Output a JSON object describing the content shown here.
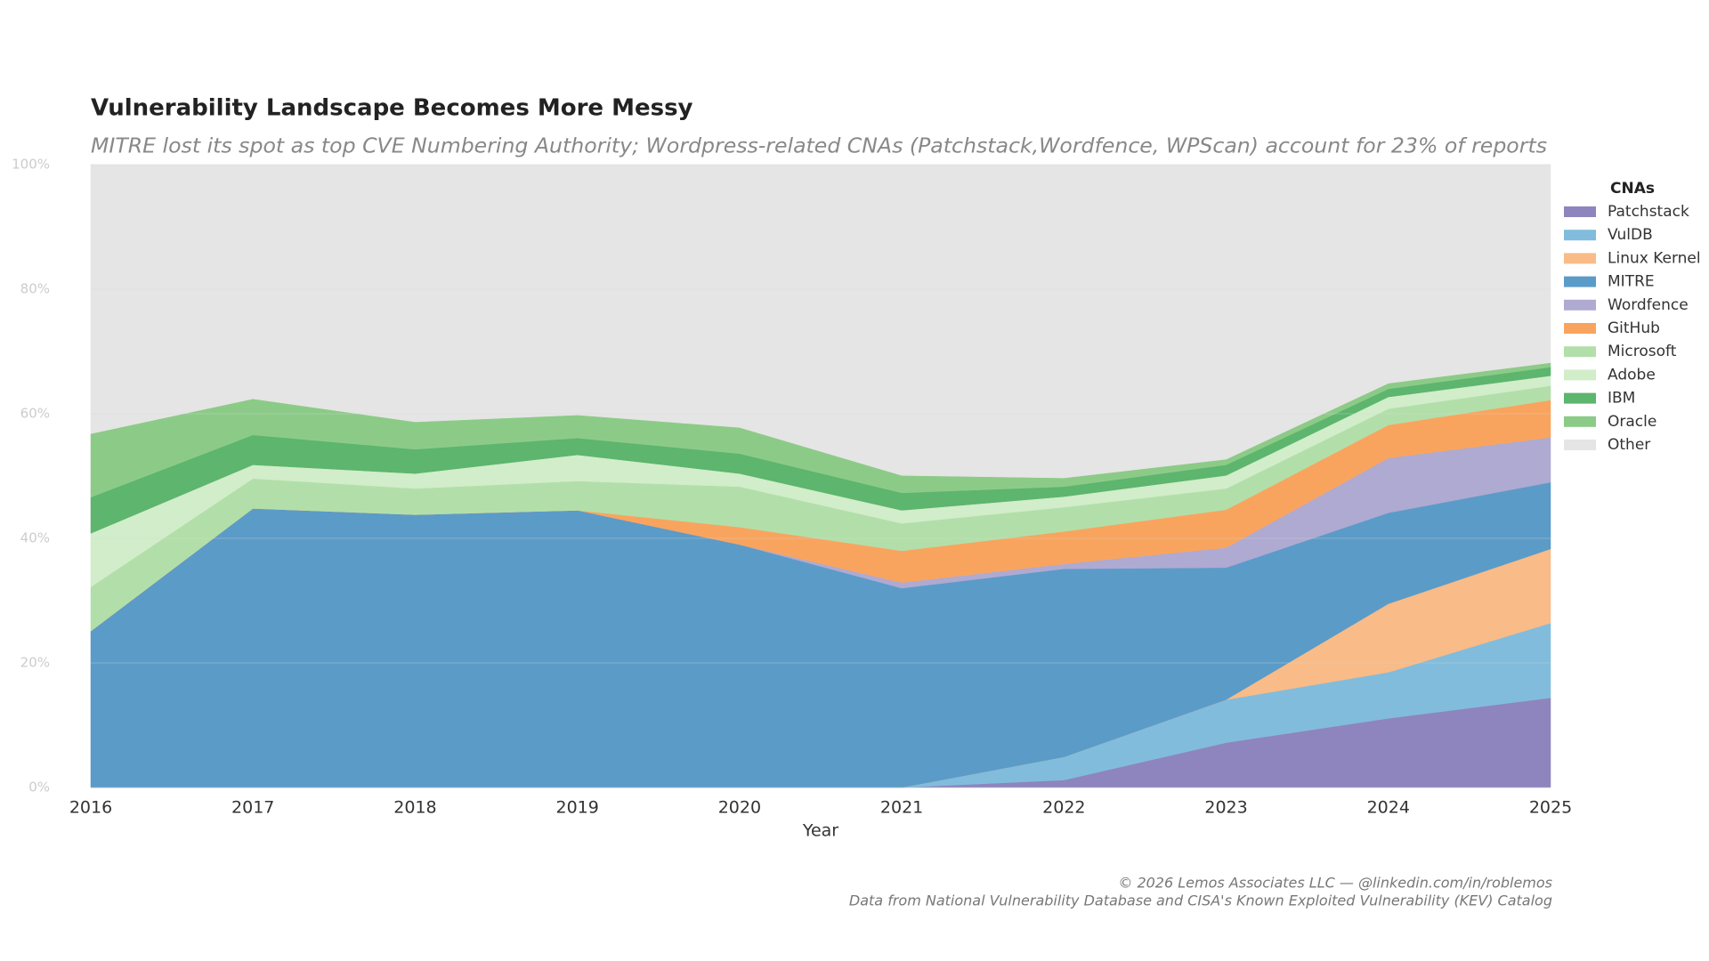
{
  "chart_data": {
    "type": "stacked_area",
    "title": "Vulnerability Landscape Becomes More Messy",
    "subtitle": "MITRE lost its spot as top CVE Numbering Authority; Wordpress-related CNAs (Patchstack,Wordfence, WPScan) account for 23% of reports",
    "x_label": "Year",
    "categories": [
      "2016",
      "2017",
      "2018",
      "2019",
      "2020",
      "2021",
      "2022",
      "2023",
      "2024",
      "2025"
    ],
    "ylim": [
      0,
      100
    ],
    "yticks": [
      {
        "value": 0,
        "label": "0%"
      },
      {
        "value": 20,
        "label": "20%"
      },
      {
        "value": 40,
        "label": "40%"
      },
      {
        "value": 60,
        "label": "60%"
      },
      {
        "value": 80,
        "label": "80%"
      },
      {
        "value": 100,
        "label": "100%"
      }
    ],
    "grid": true,
    "legend_title": "CNAs",
    "legend_position": "right",
    "series": [
      {
        "name": "Patchstack",
        "color": "#8e85be",
        "values": [
          0,
          0,
          0,
          0,
          0,
          0,
          1.2,
          7.2,
          11.1,
          14.4
        ]
      },
      {
        "name": "VulDB",
        "color": "#82bcdc",
        "values": [
          0,
          0,
          0,
          0,
          0,
          0,
          3.7,
          6.9,
          7.4,
          12.0
        ]
      },
      {
        "name": "Linux Kernel",
        "color": "#f9bb87",
        "values": [
          0,
          0,
          0,
          0,
          0,
          0,
          0,
          0,
          11.0,
          11.9
        ]
      },
      {
        "name": "MITRE",
        "color": "#5b9bc8",
        "values": [
          25.1,
          44.8,
          43.8,
          44.5,
          39.0,
          32.0,
          30.2,
          21.2,
          14.6,
          10.7
        ]
      },
      {
        "name": "Wordfence",
        "color": "#aeaad2",
        "values": [
          0,
          0,
          0,
          0,
          0,
          0.9,
          0.8,
          3.2,
          8.8,
          7.2
        ]
      },
      {
        "name": "GitHub",
        "color": "#f9a45e",
        "values": [
          0,
          0,
          0,
          0,
          2.8,
          5.1,
          5.2,
          6.1,
          5.3,
          6.0
        ]
      },
      {
        "name": "Microsoft",
        "color": "#b2dfa9",
        "values": [
          7.1,
          4.8,
          4.2,
          4.7,
          6.5,
          4.4,
          3.9,
          3.4,
          2.6,
          2.3
        ]
      },
      {
        "name": "Adobe",
        "color": "#d1edc9",
        "values": [
          8.6,
          2.2,
          2.4,
          4.2,
          2.1,
          2.1,
          1.7,
          2.1,
          1.9,
          1.6
        ]
      },
      {
        "name": "IBM",
        "color": "#5db56e",
        "values": [
          5.8,
          4.8,
          3.9,
          2.7,
          3.2,
          2.8,
          1.6,
          1.7,
          1.3,
          1.4
        ]
      },
      {
        "name": "Oracle",
        "color": "#8ccb87",
        "values": [
          10.2,
          5.8,
          4.4,
          3.7,
          4.2,
          2.8,
          1.4,
          0.9,
          0.9,
          0.7
        ]
      },
      {
        "name": "Other",
        "color": "#e5e5e5",
        "values": [
          43.2,
          37.6,
          41.3,
          40.2,
          42.2,
          49.9,
          50.3,
          47.3,
          35.1,
          31.8
        ]
      }
    ],
    "notes": [
      "© 2026 Lemos Associates LLC — @linkedin.com/in/roblemos",
      "Data from National Vulnerability Database and CISA's Known Exploited Vulnerability (KEV) Catalog"
    ]
  }
}
